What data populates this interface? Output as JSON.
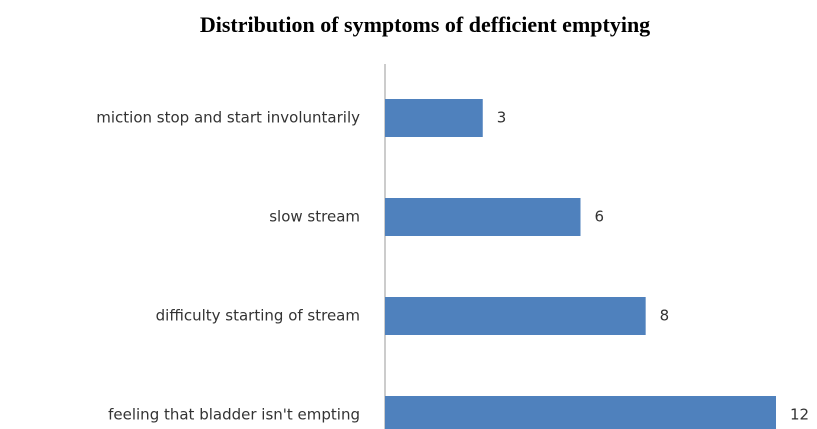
{
  "chart_data": {
    "type": "bar",
    "orientation": "horizontal",
    "title": "Distribution of symptoms of defficient emptying",
    "categories": [
      "miction stop and start involuntarily",
      "slow stream",
      "difficulty starting of stream",
      "feeling that bladder isn't empting"
    ],
    "values": [
      3,
      6,
      8,
      12
    ],
    "color": "#4f81bd"
  }
}
